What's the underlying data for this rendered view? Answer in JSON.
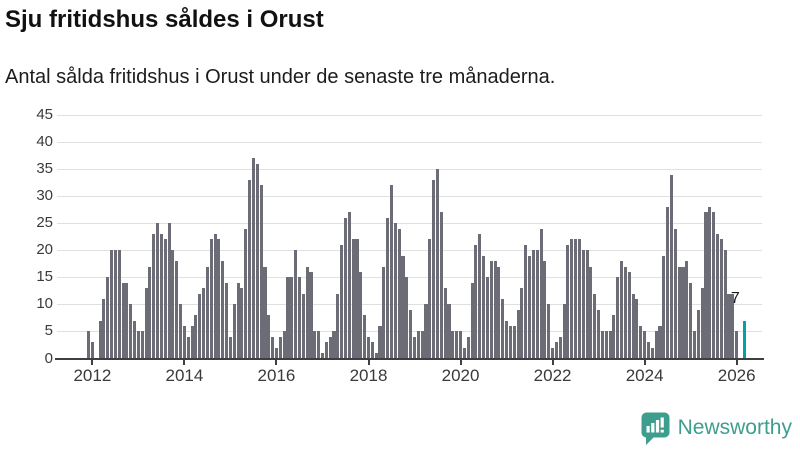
{
  "title": "Sju fritidshus såldes i Orust",
  "subtitle": "Antal sålda fritidshus i Orust under de senaste tre månaderna.",
  "branding": {
    "logo_text": "Newsworthy",
    "logo_icon": "bar-chart-speech-bubble-icon"
  },
  "colors": {
    "bar": "#6c6c77",
    "accent_teal": "#00a4a8",
    "brand_teal": "#3e9e8e",
    "grid": "#e0e0e0",
    "axis": "#3f3f3f",
    "text": "#111111"
  },
  "chart_data": {
    "type": "bar",
    "title": "Sju fritidshus såldes i Orust",
    "subtitle": "Antal sålda fritidshus i Orust under de senaste tre månaderna.",
    "x_start": "2011-12",
    "x_end": "2026-01",
    "x_unit": "month",
    "x_tick_labels": [
      "2012",
      "2014",
      "2016",
      "2018",
      "2020",
      "2022",
      "2024",
      "2026"
    ],
    "y_ticks": [
      0,
      5,
      10,
      15,
      20,
      25,
      30,
      35,
      40,
      45
    ],
    "ylim": [
      0,
      45
    ],
    "grid": true,
    "legend": "none",
    "values": [
      5,
      3,
      0,
      7,
      11,
      15,
      20,
      20,
      20,
      14,
      14,
      10,
      7,
      5,
      5,
      13,
      17,
      23,
      25,
      23,
      22,
      25,
      20,
      18,
      10,
      6,
      4,
      6,
      8,
      12,
      13,
      17,
      22,
      23,
      22,
      18,
      14,
      4,
      10,
      14,
      13,
      24,
      33,
      37,
      36,
      32,
      17,
      8,
      4,
      2,
      4,
      5,
      15,
      15,
      20,
      15,
      12,
      17,
      16,
      5,
      5,
      1,
      3,
      4,
      5,
      12,
      21,
      26,
      27,
      22,
      22,
      16,
      8,
      4,
      3,
      1,
      6,
      17,
      26,
      32,
      25,
      24,
      19,
      15,
      9,
      4,
      5,
      5,
      10,
      22,
      33,
      35,
      27,
      13,
      10,
      5,
      5,
      5,
      2,
      4,
      14,
      21,
      23,
      19,
      15,
      18,
      18,
      17,
      11,
      7,
      6,
      6,
      9,
      13,
      21,
      19,
      20,
      20,
      24,
      18,
      10,
      2,
      3,
      4,
      10,
      21,
      22,
      22,
      22,
      20,
      20,
      17,
      12,
      9,
      5,
      5,
      5,
      8,
      15,
      18,
      17,
      16,
      12,
      11,
      6,
      5,
      3,
      2,
      5,
      6,
      19,
      28,
      34,
      24,
      17,
      17,
      18,
      14,
      5,
      9,
      13,
      27,
      28,
      27,
      23,
      22,
      20,
      12,
      12,
      5
    ],
    "latest": {
      "value": 7,
      "label": "7",
      "gap_before": 1,
      "color": "#00a4a8"
    }
  }
}
